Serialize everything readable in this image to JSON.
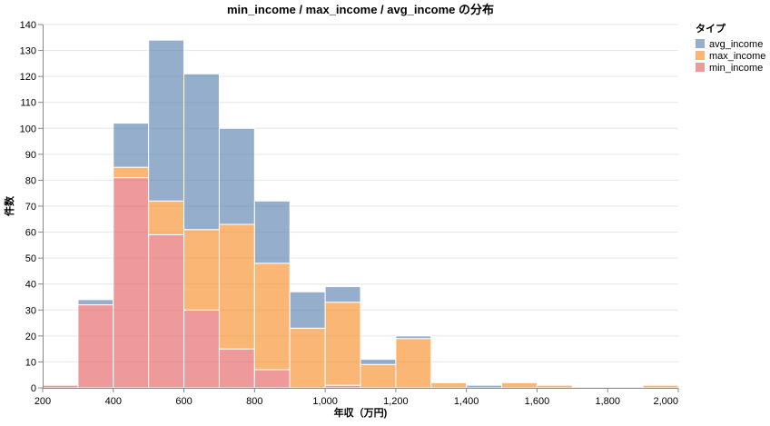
{
  "chart_data": {
    "type": "bar",
    "stacked": true,
    "title": "min_income / max_income / avg_income の分布",
    "xlabel": "年収（万円)",
    "ylabel": "件数",
    "xlim": [
      200,
      2000
    ],
    "ylim": [
      0,
      140
    ],
    "x_ticks": [
      200,
      400,
      600,
      800,
      1000,
      1200,
      1400,
      1600,
      1800,
      2000
    ],
    "x_tick_labels": [
      "200",
      "400",
      "600",
      "800",
      "1,000",
      "1,200",
      "1,400",
      "1,600",
      "1,800",
      "2,000"
    ],
    "y_ticks": [
      0,
      10,
      20,
      30,
      40,
      50,
      60,
      70,
      80,
      90,
      100,
      110,
      120,
      130,
      140
    ],
    "y_tick_labels": [
      "0",
      "10",
      "20",
      "30",
      "40",
      "50",
      "60",
      "70",
      "80",
      "90",
      "100",
      "110",
      "120",
      "130",
      "140"
    ],
    "grid": true,
    "legend": {
      "title": "タイプ",
      "placement": "top-right",
      "entries": [
        "avg_income",
        "max_income",
        "min_income"
      ]
    },
    "bins": [
      {
        "start": 200,
        "end": 300
      },
      {
        "start": 300,
        "end": 400
      },
      {
        "start": 400,
        "end": 500
      },
      {
        "start": 500,
        "end": 600
      },
      {
        "start": 600,
        "end": 700
      },
      {
        "start": 700,
        "end": 800
      },
      {
        "start": 800,
        "end": 900
      },
      {
        "start": 900,
        "end": 1000
      },
      {
        "start": 1000,
        "end": 1100
      },
      {
        "start": 1100,
        "end": 1200
      },
      {
        "start": 1200,
        "end": 1300
      },
      {
        "start": 1300,
        "end": 1400
      },
      {
        "start": 1400,
        "end": 1500
      },
      {
        "start": 1500,
        "end": 1600
      },
      {
        "start": 1600,
        "end": 1700
      },
      {
        "start": 1700,
        "end": 1800
      },
      {
        "start": 1800,
        "end": 1900
      },
      {
        "start": 1900,
        "end": 2000
      }
    ],
    "series": [
      {
        "name": "min_income",
        "color": "#e45756",
        "values": [
          1,
          32,
          81,
          59,
          30,
          15,
          7,
          0,
          1,
          0,
          0,
          0,
          0,
          0,
          0,
          0,
          0,
          0
        ]
      },
      {
        "name": "max_income",
        "color": "#f58518",
        "values": [
          0,
          0,
          4,
          13,
          31,
          48,
          41,
          23,
          32,
          9,
          19,
          2,
          0,
          2,
          1,
          0,
          0,
          1
        ]
      },
      {
        "name": "avg_income",
        "color": "#4c78a8",
        "values": [
          0,
          2,
          17,
          62,
          60,
          37,
          24,
          14,
          6,
          2,
          1,
          0,
          1,
          0,
          0,
          0,
          0,
          0
        ]
      }
    ]
  }
}
